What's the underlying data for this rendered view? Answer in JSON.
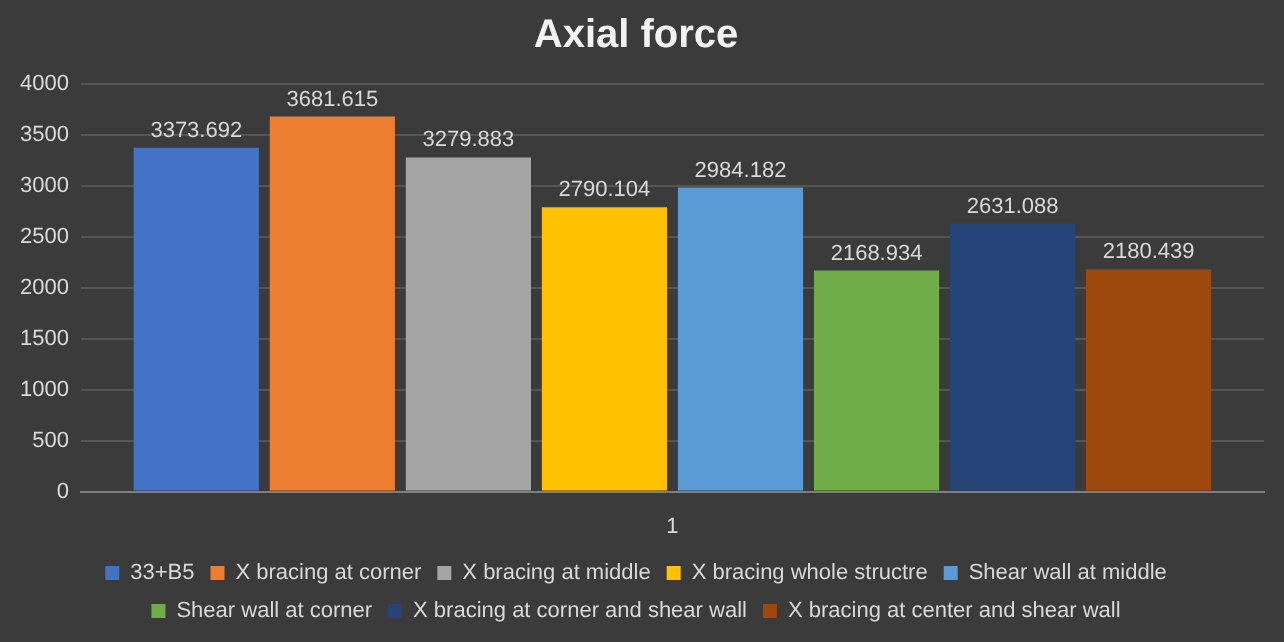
{
  "chart_data": {
    "type": "bar",
    "title": "Axial force",
    "categories": [
      "1"
    ],
    "series": [
      {
        "name": "33+B5",
        "color": "#4472c4",
        "values": [
          3373.692
        ]
      },
      {
        "name": "X bracing at corner",
        "color": "#ed7d31",
        "values": [
          3681.615
        ]
      },
      {
        "name": "X bracing at middle",
        "color": "#a5a5a5",
        "values": [
          3279.883
        ]
      },
      {
        "name": "X bracing whole structre",
        "color": "#ffc000",
        "values": [
          2790.104
        ]
      },
      {
        "name": "Shear wall at middle",
        "color": "#5b9bd5",
        "values": [
          2984.182
        ]
      },
      {
        "name": "Shear wall at corner",
        "color": "#70ad47",
        "values": [
          2168.934
        ]
      },
      {
        "name": "X bracing at corner and shear wall",
        "color": "#264478",
        "values": [
          2631.088
        ]
      },
      {
        "name": "X bracing at center and shear wall",
        "color": "#9e480e",
        "values": [
          2180.439
        ]
      }
    ],
    "ylim": [
      0,
      4000
    ],
    "yticks": [
      0,
      500,
      1000,
      1500,
      2000,
      2500,
      3000,
      3500,
      4000
    ],
    "grid": "y",
    "legend": "bottom",
    "data_labels": true
  }
}
